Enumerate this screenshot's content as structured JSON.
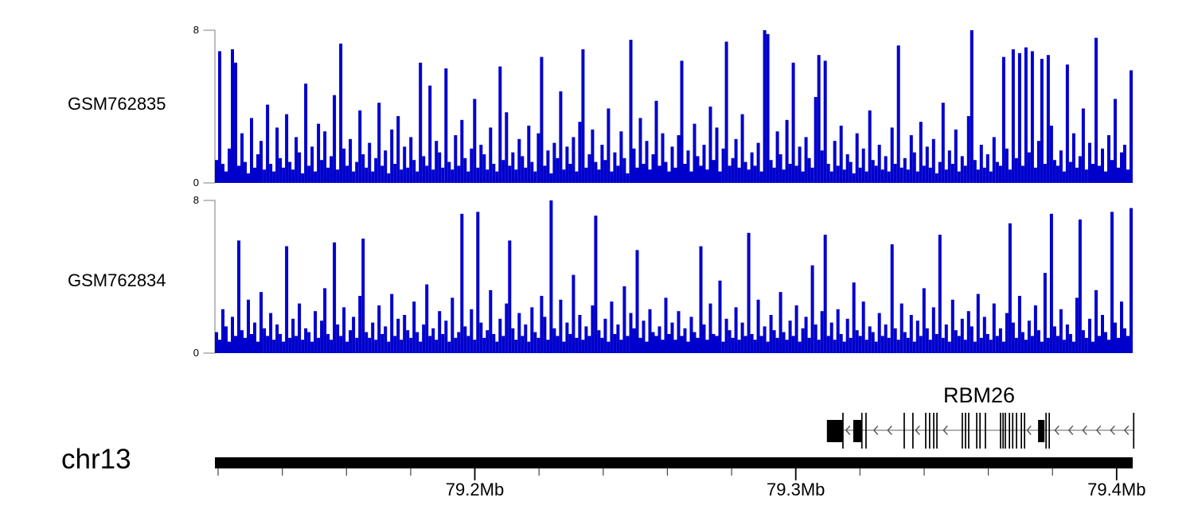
{
  "figure": {
    "background": "#FFFFFF",
    "signal_color": "#0000CC"
  },
  "chart_data": [
    {
      "type": "area",
      "name": "GSM762835",
      "ylim": [
        0,
        8
      ],
      "color": "#0000CC",
      "x_range_mb": [
        79.119,
        79.405
      ],
      "values": [
        1.2,
        6.9,
        1.0,
        0.6,
        1.8,
        7.0,
        6.3,
        0.9,
        2.6,
        1.1,
        0.5,
        3.4,
        0.8,
        1.5,
        2.2,
        0.7,
        4.1,
        1.0,
        0.6,
        2.9,
        1.3,
        0.8,
        3.6,
        1.1,
        0.7,
        2.4,
        1.6,
        0.5,
        5.2,
        0.9,
        1.9,
        0.6,
        3.1,
        1.2,
        2.7,
        0.8,
        1.4,
        4.6,
        0.7,
        7.3,
        1.8,
        0.9,
        2.3,
        0.6,
        1.1,
        3.8,
        1.5,
        0.8,
        2.1,
        0.6,
        1.3,
        4.2,
        0.9,
        1.7,
        0.5,
        2.8,
        1.0,
        3.5,
        0.7,
        1.9,
        0.8,
        2.4,
        1.2,
        0.6,
        6.3,
        1.4,
        0.9,
        5.1,
        0.7,
        2.2,
        1.6,
        0.8,
        6.0,
        1.1,
        0.7,
        2.5,
        0.9,
        3.3,
        1.3,
        0.6,
        1.8,
        4.4,
        0.8,
        2.0,
        1.5,
        0.7,
        2.9,
        1.0,
        0.6,
        6.1,
        1.2,
        3.7,
        0.9,
        1.6,
        0.7,
        2.3,
        1.4,
        0.8,
        3.0,
        1.1,
        0.6,
        2.6,
        6.6,
        0.9,
        1.7,
        0.5,
        2.1,
        1.3,
        4.8,
        0.7,
        1.9,
        1.0,
        2.4,
        0.6,
        3.2,
        7.0,
        0.8,
        1.5,
        2.8,
        1.1,
        0.7,
        2.0,
        1.2,
        3.9,
        0.6,
        1.6,
        0.9,
        2.7,
        1.3,
        0.5,
        7.5,
        1.8,
        0.8,
        3.4,
        1.0,
        2.2,
        0.7,
        1.5,
        4.3,
        0.9,
        2.6,
        1.1,
        0.6,
        1.9,
        0.8,
        2.5,
        6.4,
        1.0,
        1.7,
        0.6,
        3.1,
        1.4,
        0.9,
        2.0,
        0.7,
        4.0,
        1.2,
        2.9,
        0.6,
        1.8,
        7.4,
        0.9,
        1.3,
        2.3,
        0.8,
        3.6,
        1.1,
        0.7,
        1.6,
        0.9,
        2.1,
        0.6,
        8.0,
        7.8,
        1.2,
        0.8,
        2.7,
        1.5,
        0.7,
        3.3,
        1.0,
        6.3,
        0.9,
        1.9,
        0.6,
        2.4,
        1.3,
        0.8,
        4.5,
        6.7,
        1.7,
        6.4,
        1.0,
        0.6,
        2.2,
        0.9,
        3.0,
        0.7,
        1.5,
        1.1,
        0.5,
        2.6,
        0.8,
        1.8,
        0.6,
        3.8,
        1.2,
        0.9,
        2.0,
        0.7,
        1.4,
        0.6,
        2.9,
        1.0,
        7.2,
        0.8,
        1.3,
        0.7,
        2.5,
        1.6,
        0.6,
        3.2,
        0.9,
        1.9,
        0.8,
        2.3,
        0.5,
        1.1,
        4.2,
        0.7,
        1.7,
        1.0,
        2.8,
        0.6,
        1.4,
        0.9,
        3.5,
        8.0,
        1.2,
        0.7,
        2.0,
        0.8,
        1.5,
        0.6,
        2.4,
        1.1,
        0.9,
        6.6,
        1.8,
        0.7,
        7.0,
        1.3,
        6.8,
        0.9,
        7.1,
        1.6,
        6.9,
        0.8,
        2.2,
        6.5,
        1.0,
        6.7,
        3.0,
        1.2,
        0.9,
        1.7,
        0.6,
        6.2,
        1.1,
        2.6,
        0.8,
        1.4,
        3.9,
        0.7,
        2.1,
        1.0,
        7.6,
        0.9,
        1.8,
        0.6,
        2.5,
        1.2,
        4.4,
        0.8,
        1.6,
        2.0,
        0.7,
        5.9
      ]
    },
    {
      "type": "area",
      "name": "GSM762834",
      "ylim": [
        0,
        8
      ],
      "color": "#0000CC",
      "x_range_mb": [
        79.119,
        79.405
      ],
      "values": [
        1.1,
        0.7,
        2.3,
        1.4,
        0.6,
        1.9,
        0.9,
        5.9,
        1.2,
        0.8,
        2.8,
        1.0,
        1.6,
        0.6,
        3.2,
        1.3,
        0.9,
        2.1,
        0.7,
        1.5,
        1.0,
        0.6,
        5.6,
        0.8,
        1.8,
        0.9,
        2.6,
        0.7,
        1.3,
        1.1,
        0.6,
        2.2,
        0.8,
        1.7,
        3.4,
        1.0,
        0.7,
        5.8,
        1.5,
        0.9,
        2.4,
        0.6,
        1.2,
        1.9,
        0.8,
        3.0,
        6.0,
        1.1,
        0.8,
        1.6,
        0.7,
        2.5,
        1.0,
        1.4,
        0.6,
        3.1,
        0.9,
        1.8,
        0.7,
        2.0,
        1.2,
        0.8,
        2.7,
        1.1,
        0.6,
        1.5,
        3.6,
        0.9,
        1.3,
        0.7,
        2.2,
        1.0,
        1.7,
        0.6,
        2.9,
        0.8,
        1.1,
        7.3,
        1.4,
        0.9,
        2.3,
        0.7,
        7.4,
        1.6,
        0.8,
        1.2,
        3.3,
        1.0,
        0.6,
        1.8,
        0.9,
        2.6,
        5.9,
        1.3,
        0.7,
        2.1,
        0.9,
        1.5,
        0.6,
        2.4,
        1.1,
        0.8,
        3.0,
        1.9,
        0.7,
        8.0,
        1.3,
        0.9,
        2.8,
        0.6,
        1.6,
        1.0,
        4.1,
        0.8,
        2.0,
        0.7,
        1.4,
        0.9,
        2.5,
        7.2,
        1.2,
        0.8,
        1.8,
        0.6,
        2.7,
        1.0,
        1.5,
        0.7,
        3.5,
        0.9,
        2.1,
        1.3,
        5.4,
        0.8,
        1.7,
        0.6,
        2.3,
        1.1,
        0.9,
        1.4,
        0.7,
        2.9,
        1.0,
        1.6,
        0.7,
        2.2,
        0.9,
        1.3,
        0.6,
        1.9,
        1.1,
        0.8,
        5.6,
        1.5,
        0.7,
        2.6,
        1.0,
        0.9,
        3.8,
        0.6,
        1.8,
        1.2,
        0.8,
        2.4,
        0.7,
        1.6,
        0.9,
        6.3,
        1.0,
        0.7,
        2.8,
        0.9,
        1.4,
        0.6,
        2.0,
        1.2,
        0.8,
        3.2,
        1.1,
        0.7,
        1.7,
        0.9,
        2.5,
        0.6,
        1.3,
        1.9,
        0.8,
        4.6,
        1.5,
        0.7,
        2.2,
        6.2,
        0.9,
        1.6,
        0.7,
        2.3,
        1.0,
        0.6,
        1.8,
        0.8,
        3.7,
        1.2,
        0.9,
        2.7,
        0.7,
        1.4,
        1.1,
        0.6,
        2.1,
        0.9,
        1.5,
        0.8,
        5.7,
        1.3,
        0.7,
        2.6,
        1.1,
        0.8,
        2.0,
        0.6,
        1.7,
        0.9,
        3.4,
        1.3,
        0.7,
        2.4,
        1.0,
        6.2,
        0.8,
        1.5,
        0.6,
        2.8,
        1.2,
        0.9,
        1.8,
        0.7,
        2.2,
        1.4,
        0.6,
        3.1,
        0.8,
        1.9,
        1.0,
        0.7,
        2.6,
        0.9,
        1.3,
        0.6,
        2.1,
        6.8,
        1.6,
        0.8,
        3.0,
        1.1,
        0.7,
        1.7,
        0.9,
        2.5,
        1.2,
        0.6,
        4.2,
        0.8,
        7.3,
        1.4,
        0.9,
        2.3,
        0.7,
        1.5,
        1.0,
        0.6,
        2.9,
        7.0,
        1.2,
        0.8,
        1.8,
        0.6,
        3.3,
        0.9,
        2.0,
        1.1,
        0.7,
        7.4,
        1.6,
        0.8,
        2.7,
        1.3,
        0.9,
        7.6
      ]
    },
    {
      "type": "gene-model",
      "name": "RBM26",
      "strand": "-",
      "span_mb": [
        79.3097,
        79.4053
      ],
      "boxes_mb": [
        [
          79.3097,
          79.3147
        ],
        [
          79.3179,
          79.3206
        ],
        [
          79.3755,
          79.3775
        ]
      ],
      "exon_lines_mb": [
        79.3147,
        79.3206,
        79.3219,
        79.3338,
        79.3365,
        79.3405,
        79.3417,
        79.343,
        79.344,
        79.3519,
        79.3529,
        79.3539,
        79.3564,
        79.3574,
        79.3591,
        79.3638,
        79.3646,
        79.3653,
        79.3666,
        79.3676,
        79.3688,
        79.3703,
        79.3713,
        79.378,
        79.379,
        79.4053
      ]
    },
    {
      "type": "genomic-axis",
      "chrom": "chr13",
      "range_mb": [
        79.119,
        79.405
      ],
      "major_ticks": [
        {
          "mb": 79.2,
          "label": "79.2Mb"
        },
        {
          "mb": 79.3,
          "label": "79.3Mb"
        },
        {
          "mb": 79.4,
          "label": "79.4Mb"
        }
      ],
      "minor_tick_start_mb": 79.12,
      "minor_tick_step_mb": 0.02,
      "minor_tick_count": 15
    }
  ]
}
